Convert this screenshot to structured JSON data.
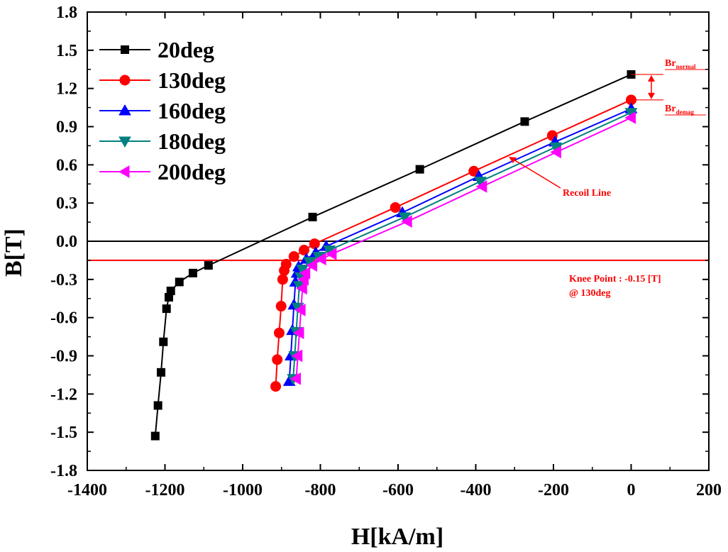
{
  "chart_data": {
    "type": "line",
    "xlabel": "H[kA/m]",
    "ylabel": "B[T]",
    "xlim": [
      -1400,
      200
    ],
    "ylim": [
      -1.8,
      1.8
    ],
    "xticks": [
      "-1400",
      "-1200",
      "-1000",
      "-800",
      "-600",
      "-400",
      "-200",
      "0",
      "200"
    ],
    "yticks": [
      "1.8",
      "1.5",
      "1.2",
      "0.9",
      "0.6",
      "0.3",
      "0.0",
      "-0.3",
      "-0.6",
      "-0.9",
      "-1.2",
      "-1.5",
      "-1.8"
    ],
    "grid": false,
    "legend_position": "top-left",
    "series": [
      {
        "name": "20deg",
        "color": "#000000",
        "marker": "square",
        "points": [
          [
            0,
            1.31
          ],
          [
            -274,
            0.94
          ],
          [
            -544,
            0.565
          ],
          [
            -820,
            0.19
          ],
          [
            -1088,
            -0.19
          ],
          [
            -1128,
            -0.25
          ],
          [
            -1163,
            -0.32
          ],
          [
            -1185,
            -0.39
          ],
          [
            -1190,
            -0.44
          ],
          [
            -1196,
            -0.53
          ],
          [
            -1204,
            -0.79
          ],
          [
            -1210,
            -1.03
          ],
          [
            -1218,
            -1.29
          ],
          [
            -1225,
            -1.53
          ]
        ]
      },
      {
        "name": "130deg",
        "color": "#ff0000",
        "marker": "circle",
        "points": [
          [
            0,
            1.11
          ],
          [
            -203,
            0.83
          ],
          [
            -405,
            0.55
          ],
          [
            -607,
            0.265
          ],
          [
            -815,
            -0.02
          ],
          [
            -842,
            -0.07
          ],
          [
            -868,
            -0.12
          ],
          [
            -888,
            -0.18
          ],
          [
            -893,
            -0.23
          ],
          [
            -897,
            -0.3
          ],
          [
            -901,
            -0.51
          ],
          [
            -906,
            -0.72
          ],
          [
            -911,
            -0.93
          ],
          [
            -915,
            -1.14
          ]
        ]
      },
      {
        "name": "160deg",
        "color": "#0000ff",
        "marker": "triangle-up",
        "points": [
          [
            0,
            1.04
          ],
          [
            -196,
            0.78
          ],
          [
            -392,
            0.51
          ],
          [
            -589,
            0.225
          ],
          [
            -785,
            -0.04
          ],
          [
            -812,
            -0.09
          ],
          [
            -836,
            -0.14
          ],
          [
            -856,
            -0.2
          ],
          [
            -860,
            -0.25
          ],
          [
            -864,
            -0.32
          ],
          [
            -868,
            -0.5
          ],
          [
            -872,
            -0.7
          ],
          [
            -876,
            -0.9
          ],
          [
            -880,
            -1.1
          ]
        ]
      },
      {
        "name": "180deg",
        "color": "#00807f",
        "marker": "triangle-down",
        "points": [
          [
            0,
            1.01
          ],
          [
            -194,
            0.74
          ],
          [
            -388,
            0.47
          ],
          [
            -583,
            0.19
          ],
          [
            -777,
            -0.07
          ],
          [
            -804,
            -0.12
          ],
          [
            -828,
            -0.16
          ],
          [
            -846,
            -0.22
          ],
          [
            -850,
            -0.28
          ],
          [
            -854,
            -0.35
          ],
          [
            -858,
            -0.52
          ],
          [
            -862,
            -0.71
          ],
          [
            -866,
            -0.9
          ],
          [
            -870,
            -1.08
          ]
        ]
      },
      {
        "name": "200deg",
        "color": "#ff00ff",
        "marker": "triangle-left",
        "points": [
          [
            0,
            0.97
          ],
          [
            -192,
            0.7
          ],
          [
            -383,
            0.43
          ],
          [
            -576,
            0.155
          ],
          [
            -770,
            -0.1
          ],
          [
            -797,
            -0.14
          ],
          [
            -820,
            -0.19
          ],
          [
            -838,
            -0.25
          ],
          [
            -842,
            -0.3
          ],
          [
            -846,
            -0.37
          ],
          [
            -850,
            -0.54
          ],
          [
            -854,
            -0.72
          ],
          [
            -858,
            -0.9
          ],
          [
            -862,
            -1.08
          ]
        ]
      }
    ],
    "reference_lines": [
      {
        "axis": "y",
        "value": 0.0,
        "color": "#000000"
      },
      {
        "axis": "y",
        "value": -0.15,
        "color": "#ff0000"
      }
    ],
    "annotations": {
      "br_normal_main": "Br",
      "br_normal_sub": "normal",
      "br_demag_main": "Br",
      "br_demag_sub": "demag",
      "recoil": "Recoil Line",
      "knee_line1": "Knee Point : -0.15 [T]",
      "knee_line2": "@ 130deg"
    }
  }
}
